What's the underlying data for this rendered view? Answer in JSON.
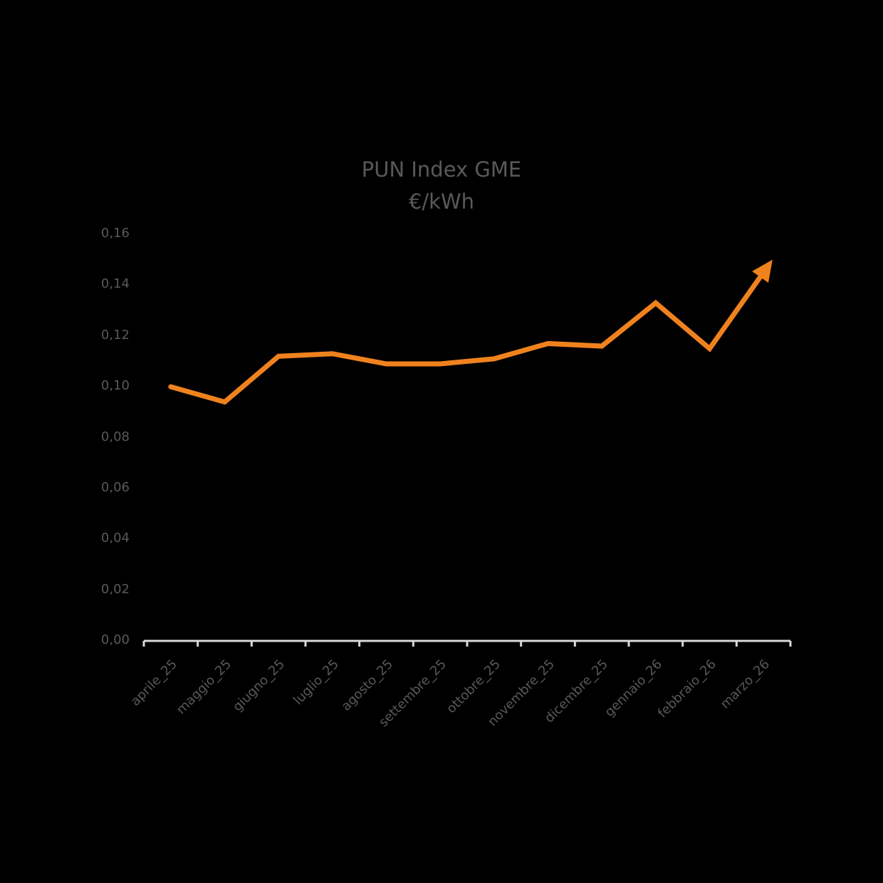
{
  "chart_data": {
    "type": "line",
    "title": "PUN Index GME",
    "subtitle": "€/kWh",
    "xlabel": "",
    "ylabel": "",
    "categories": [
      "aprile_25",
      "maggio_25",
      "giugno_25",
      "luglio_25",
      "agosto_25",
      "settembre_25",
      "ottobre_25",
      "novembre_25",
      "dicembre_25",
      "gennaio_26",
      "febbraio_26",
      "marzo_26"
    ],
    "series": [
      {
        "name": "PUN Index GME",
        "color": "#F0821E",
        "values": [
          0.1,
          0.094,
          0.112,
          0.113,
          0.109,
          0.109,
          0.111,
          0.117,
          0.116,
          0.133,
          0.115,
          0.145
        ],
        "end_marker": "arrow"
      }
    ],
    "ylim": [
      0,
      0.16
    ],
    "yticks": [
      "0,00",
      "0,02",
      "0,04",
      "0,06",
      "0,08",
      "0,10",
      "0,12",
      "0,14",
      "0,16"
    ],
    "grid": false,
    "legend": "none",
    "background": "#000000",
    "axis_color": "#D9D9D9",
    "text_color": "#595959"
  }
}
